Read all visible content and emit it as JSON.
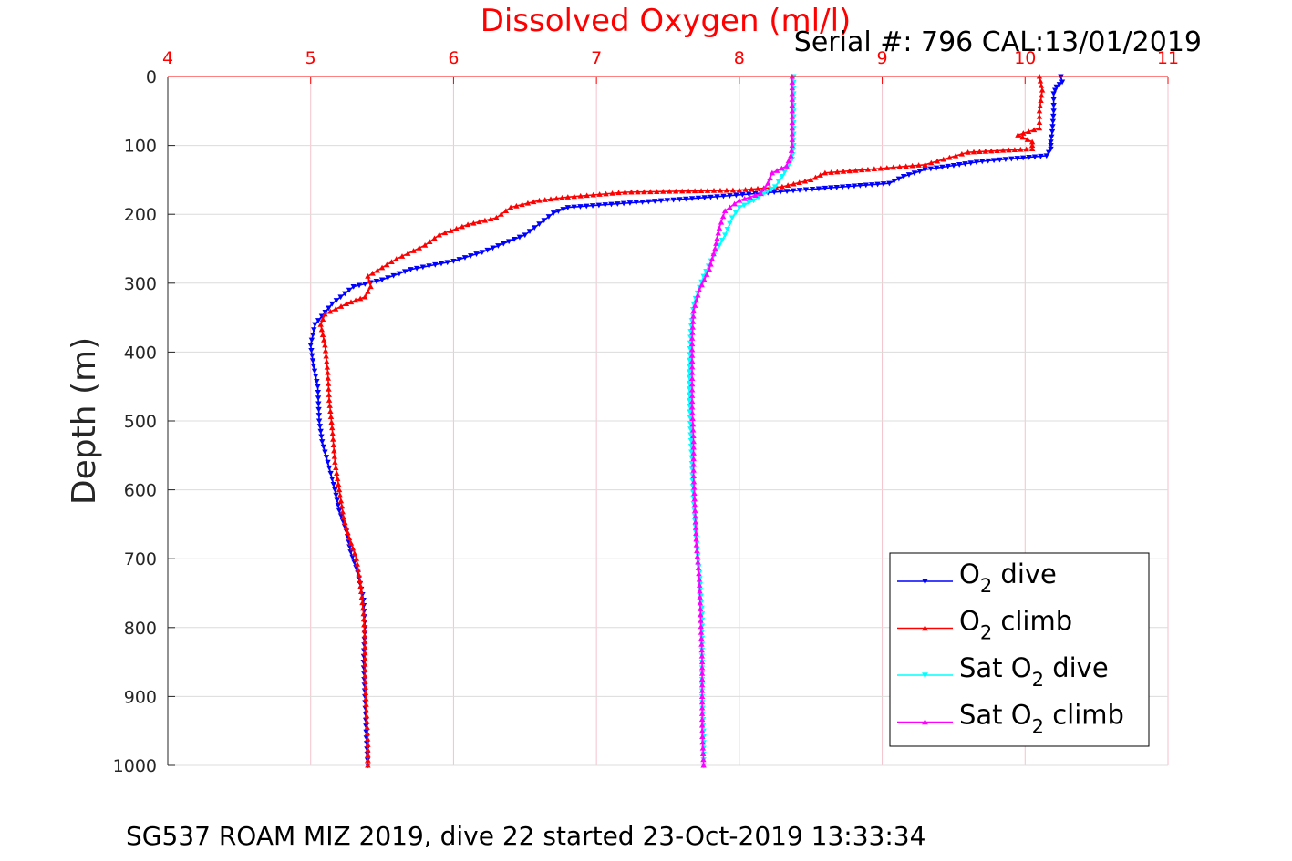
{
  "chart_data": {
    "type": "line",
    "title": "Dissolved Oxygen (ml/l)",
    "subtitle": "Serial #: 796  CAL:13/01/2019",
    "xlabel": "",
    "ylabel": "Depth (m)",
    "caption": "SG537 ROAM MIZ 2019, dive 22 started 23-Oct-2019 13:33:34",
    "xlim": [
      4,
      11
    ],
    "ylim": [
      0,
      1000
    ],
    "y_reversed": true,
    "x_axis_position": "top",
    "x_ticks": [
      "4",
      "5",
      "6",
      "7",
      "8",
      "9",
      "10",
      "11"
    ],
    "y_ticks": [
      "0",
      "100",
      "200",
      "300",
      "400",
      "500",
      "600",
      "700",
      "800",
      "900",
      "1000"
    ],
    "grid": true,
    "legend_position": "bottom-right",
    "series": [
      {
        "name": "O2 dive",
        "label_main": "O",
        "label_sub": "2",
        "label_tail": " dive",
        "color": "#0000ff",
        "marker": "triangle-down",
        "points": [
          [
            10.25,
            0
          ],
          [
            10.26,
            8
          ],
          [
            10.22,
            15
          ],
          [
            10.2,
            25
          ],
          [
            10.2,
            50
          ],
          [
            10.19,
            80
          ],
          [
            10.18,
            95
          ],
          [
            10.18,
            105
          ],
          [
            10.15,
            115
          ],
          [
            9.7,
            123
          ],
          [
            9.3,
            135
          ],
          [
            9.15,
            145
          ],
          [
            9.05,
            155
          ],
          [
            8.6,
            162
          ],
          [
            7.8,
            175
          ],
          [
            6.8,
            190
          ],
          [
            6.7,
            198
          ],
          [
            6.5,
            230
          ],
          [
            6.2,
            255
          ],
          [
            6.0,
            268
          ],
          [
            5.7,
            280
          ],
          [
            5.5,
            295
          ],
          [
            5.3,
            305
          ],
          [
            5.15,
            330
          ],
          [
            5.03,
            360
          ],
          [
            5.0,
            390
          ],
          [
            5.02,
            420
          ],
          [
            5.05,
            450
          ],
          [
            5.06,
            500
          ],
          [
            5.08,
            530
          ],
          [
            5.12,
            560
          ],
          [
            5.17,
            600
          ],
          [
            5.2,
            630
          ],
          [
            5.25,
            660
          ],
          [
            5.28,
            690
          ],
          [
            5.33,
            720
          ],
          [
            5.37,
            760
          ],
          [
            5.38,
            800
          ],
          [
            5.37,
            850
          ],
          [
            5.38,
            900
          ],
          [
            5.39,
            960
          ],
          [
            5.4,
            1000
          ]
        ]
      },
      {
        "name": "O2 climb",
        "label_main": "O",
        "label_sub": "2",
        "label_tail": " climb",
        "color": "#ff0000",
        "marker": "triangle-up",
        "points": [
          [
            10.1,
            0
          ],
          [
            10.12,
            20
          ],
          [
            10.1,
            50
          ],
          [
            10.1,
            75
          ],
          [
            9.95,
            85
          ],
          [
            10.05,
            95
          ],
          [
            10.05,
            105
          ],
          [
            9.6,
            110
          ],
          [
            9.3,
            128
          ],
          [
            8.9,
            135
          ],
          [
            8.6,
            140
          ],
          [
            8.5,
            150
          ],
          [
            8.3,
            160
          ],
          [
            8.0,
            165
          ],
          [
            7.2,
            168
          ],
          [
            6.8,
            175
          ],
          [
            6.6,
            180
          ],
          [
            6.4,
            190
          ],
          [
            6.3,
            205
          ],
          [
            6.1,
            215
          ],
          [
            5.9,
            230
          ],
          [
            5.8,
            245
          ],
          [
            5.6,
            265
          ],
          [
            5.4,
            290
          ],
          [
            5.42,
            305
          ],
          [
            5.38,
            320
          ],
          [
            5.25,
            330
          ],
          [
            5.1,
            345
          ],
          [
            5.07,
            360
          ],
          [
            5.1,
            390
          ],
          [
            5.12,
            430
          ],
          [
            5.13,
            470
          ],
          [
            5.15,
            510
          ],
          [
            5.17,
            560
          ],
          [
            5.2,
            600
          ],
          [
            5.23,
            640
          ],
          [
            5.27,
            670
          ],
          [
            5.32,
            700
          ],
          [
            5.35,
            740
          ],
          [
            5.37,
            780
          ],
          [
            5.38,
            820
          ],
          [
            5.38,
            870
          ],
          [
            5.39,
            920
          ],
          [
            5.4,
            970
          ],
          [
            5.4,
            1000
          ]
        ]
      },
      {
        "name": "Sat O2 dive",
        "label_main": "Sat O",
        "label_sub": "2",
        "label_tail": " dive",
        "color": "#00ffff",
        "marker": "triangle-down",
        "points": [
          [
            8.38,
            0
          ],
          [
            8.38,
            50
          ],
          [
            8.38,
            100
          ],
          [
            8.37,
            120
          ],
          [
            8.3,
            145
          ],
          [
            8.25,
            160
          ],
          [
            8.17,
            170
          ],
          [
            8.1,
            180
          ],
          [
            8.0,
            190
          ],
          [
            7.95,
            205
          ],
          [
            7.9,
            230
          ],
          [
            7.82,
            260
          ],
          [
            7.75,
            290
          ],
          [
            7.68,
            330
          ],
          [
            7.66,
            370
          ],
          [
            7.65,
            420
          ],
          [
            7.65,
            470
          ],
          [
            7.66,
            520
          ],
          [
            7.67,
            570
          ],
          [
            7.68,
            620
          ],
          [
            7.7,
            670
          ],
          [
            7.72,
            720
          ],
          [
            7.74,
            780
          ],
          [
            7.74,
            850
          ],
          [
            7.74,
            900
          ],
          [
            7.75,
            950
          ],
          [
            7.75,
            1000
          ]
        ]
      },
      {
        "name": "Sat O2 climb",
        "label_main": "Sat O",
        "label_sub": "2",
        "label_tail": " climb",
        "color": "#ff00ff",
        "marker": "triangle-up",
        "points": [
          [
            8.37,
            0
          ],
          [
            8.37,
            50
          ],
          [
            8.37,
            100
          ],
          [
            8.36,
            115
          ],
          [
            8.33,
            130
          ],
          [
            8.23,
            140
          ],
          [
            8.2,
            155
          ],
          [
            8.15,
            170
          ],
          [
            8.0,
            180
          ],
          [
            7.9,
            195
          ],
          [
            7.86,
            220
          ],
          [
            7.83,
            250
          ],
          [
            7.79,
            280
          ],
          [
            7.72,
            310
          ],
          [
            7.68,
            340
          ],
          [
            7.67,
            380
          ],
          [
            7.67,
            430
          ],
          [
            7.67,
            480
          ],
          [
            7.68,
            530
          ],
          [
            7.68,
            580
          ],
          [
            7.69,
            630
          ],
          [
            7.7,
            680
          ],
          [
            7.72,
            730
          ],
          [
            7.73,
            790
          ],
          [
            7.74,
            850
          ],
          [
            7.74,
            900
          ],
          [
            7.74,
            950
          ],
          [
            7.75,
            1000
          ]
        ]
      }
    ]
  }
}
